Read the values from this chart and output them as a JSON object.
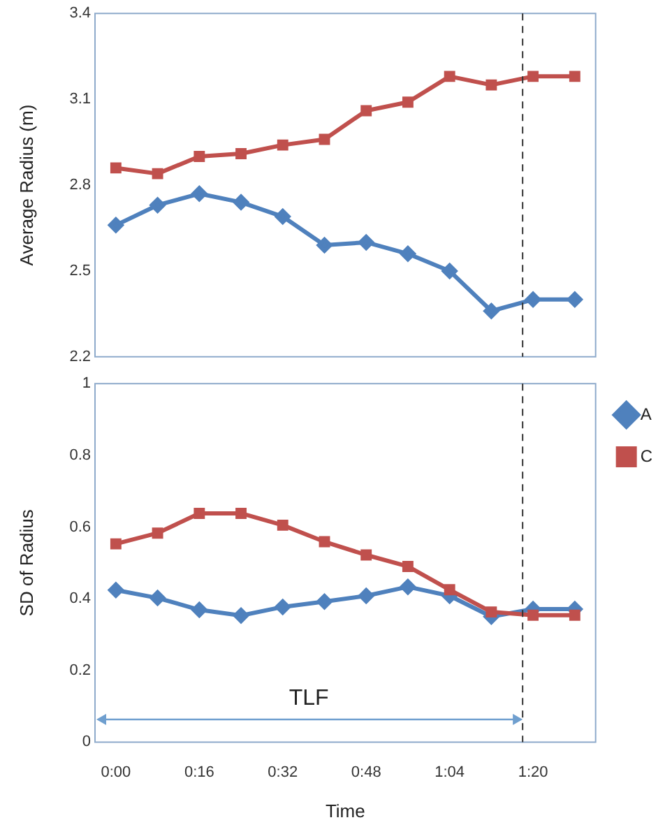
{
  "chart_data": [
    {
      "type": "line",
      "ylabel": "Average Radius (m)",
      "x": [
        0,
        0.1333,
        0.2667,
        0.4,
        0.5333,
        0.6667,
        0.8,
        0.9333,
        1.0667,
        1.2,
        1.3333,
        1.4667
      ],
      "xlim": [
        -0.0667,
        1.5333
      ],
      "ylim": [
        2.2,
        3.4
      ],
      "yticks": [
        2.2,
        2.5,
        2.8,
        3.1,
        3.4
      ],
      "tick_labels": "y",
      "grid": false,
      "legend": false,
      "series": [
        {
          "color": "#4f81bd",
          "marker": "diamond",
          "values": [
            2.66,
            2.73,
            2.77,
            2.74,
            2.69,
            2.59,
            2.6,
            2.56,
            2.5,
            2.36,
            2.4,
            2.4
          ]
        },
        {
          "color": "#c0504d",
          "marker": "square",
          "values": [
            2.86,
            2.84,
            2.9,
            2.91,
            2.94,
            2.96,
            3.06,
            3.09,
            3.18,
            3.15,
            3.18,
            3.18
          ]
        }
      ],
      "ref_lines": [
        {
          "axis": "x",
          "value": 1.3,
          "color": "#333333",
          "line_style": "dashed"
        }
      ]
    },
    {
      "type": "line",
      "ylabel": "SD of Radius",
      "xlabel": "Time",
      "x": [
        0,
        0.1333,
        0.2667,
        0.4,
        0.5333,
        0.6667,
        0.8,
        0.9333,
        1.0667,
        1.2,
        1.3333,
        1.4667
      ],
      "xlim": [
        -0.0667,
        1.5333
      ],
      "xticks": [
        {
          "value": 0,
          "label": "0:00"
        },
        {
          "value": 0.2667,
          "label": "0:16"
        },
        {
          "value": 0.5333,
          "label": "0:32"
        },
        {
          "value": 0.8,
          "label": "0:48"
        },
        {
          "value": 1.0667,
          "label": "1:04"
        },
        {
          "value": 1.3333,
          "label": "1:20"
        }
      ],
      "ylim": [
        0,
        1
      ],
      "yticks": [
        0,
        0.2,
        0.4,
        0.6,
        0.8,
        1
      ],
      "grid": false,
      "legend": "right",
      "series": [
        {
          "name": "A",
          "color": "#4f81bd",
          "marker": "diamond",
          "values": [
            0.424,
            0.402,
            0.369,
            0.353,
            0.377,
            0.392,
            0.408,
            0.433,
            0.408,
            0.35,
            0.371,
            0.371
          ]
        },
        {
          "name": "C",
          "color": "#c0504d",
          "marker": "square",
          "values": [
            0.553,
            0.583,
            0.638,
            0.638,
            0.605,
            0.559,
            0.522,
            0.49,
            0.425,
            0.363,
            0.354,
            0.354
          ]
        }
      ],
      "ref_lines": [
        {
          "axis": "x",
          "value": 1.3,
          "color": "#333333",
          "line_style": "dashed"
        }
      ],
      "annotations": [
        "TLF"
      ]
    }
  ]
}
